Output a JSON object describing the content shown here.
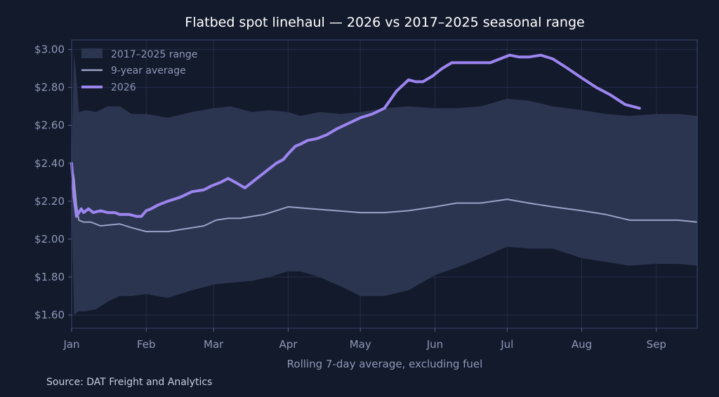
{
  "chart_data": {
    "type": "line",
    "title": "Flatbed spot linehaul — 2026 vs 2017–2025 seasonal range",
    "xlabel": "Rolling 7-day average, excluding fuel",
    "ylabel": "",
    "source": "Source: DAT Freight and Analytics",
    "x_ticks": [
      "Jan",
      "Feb",
      "Mar",
      "Apr",
      "May",
      "Jun",
      "Jul",
      "Aug",
      "Sep"
    ],
    "x_tick_days": [
      0,
      31,
      59,
      90,
      120,
      151,
      181,
      212,
      243
    ],
    "xlim": [
      0,
      260
    ],
    "y_ticks": [
      "$1.60",
      "$1.80",
      "$2.00",
      "$2.20",
      "$2.40",
      "$2.60",
      "$2.80",
      "$3.00"
    ],
    "y_tick_values": [
      1.6,
      1.8,
      2.0,
      2.2,
      2.4,
      2.6,
      2.8,
      3.0
    ],
    "ylim": [
      1.53,
      3.05
    ],
    "grid": true,
    "legend_position": "top-left",
    "series": [
      {
        "name": "2017–2025 range",
        "kind": "band",
        "color": "#2b3550",
        "x": [
          0,
          1,
          2,
          3,
          6,
          10,
          15,
          20,
          25,
          31,
          40,
          50,
          59,
          66,
          75,
          82,
          90,
          95,
          103,
          112,
          120,
          130,
          140,
          151,
          160,
          170,
          181,
          190,
          200,
          212,
          222,
          232,
          243,
          252,
          260
        ],
        "upper": [
          2.4,
          2.98,
          2.85,
          2.67,
          2.68,
          2.67,
          2.7,
          2.7,
          2.66,
          2.66,
          2.64,
          2.67,
          2.69,
          2.7,
          2.67,
          2.68,
          2.67,
          2.65,
          2.67,
          2.66,
          2.67,
          2.69,
          2.7,
          2.69,
          2.69,
          2.7,
          2.74,
          2.73,
          2.7,
          2.68,
          2.66,
          2.65,
          2.66,
          2.66,
          2.65
        ],
        "lower": [
          2.2,
          1.6,
          1.61,
          1.62,
          1.62,
          1.63,
          1.67,
          1.7,
          1.7,
          1.71,
          1.69,
          1.73,
          1.76,
          1.77,
          1.78,
          1.8,
          1.83,
          1.83,
          1.8,
          1.75,
          1.7,
          1.7,
          1.73,
          1.81,
          1.85,
          1.9,
          1.96,
          1.95,
          1.95,
          1.9,
          1.88,
          1.86,
          1.87,
          1.87,
          1.86
        ]
      },
      {
        "name": "9-year average",
        "kind": "line",
        "color": "#9aa3c4",
        "x": [
          0,
          1,
          2,
          3,
          5,
          8,
          12,
          20,
          25,
          31,
          40,
          50,
          55,
          60,
          65,
          70,
          80,
          90,
          100,
          110,
          120,
          130,
          140,
          151,
          160,
          170,
          181,
          190,
          200,
          212,
          222,
          232,
          243,
          252,
          260
        ],
        "values": [
          2.4,
          2.32,
          2.18,
          2.1,
          2.09,
          2.09,
          2.07,
          2.08,
          2.06,
          2.04,
          2.04,
          2.06,
          2.07,
          2.1,
          2.11,
          2.11,
          2.13,
          2.17,
          2.16,
          2.15,
          2.14,
          2.14,
          2.15,
          2.17,
          2.19,
          2.19,
          2.21,
          2.19,
          2.17,
          2.15,
          2.13,
          2.1,
          2.1,
          2.1,
          2.09
        ]
      },
      {
        "name": "2026",
        "kind": "line",
        "color": "#9d85f0",
        "x": [
          0,
          1,
          2,
          3,
          4,
          5,
          7,
          9,
          12,
          15,
          18,
          20,
          24,
          27,
          29,
          31,
          33,
          36,
          40,
          45,
          50,
          55,
          58,
          62,
          65,
          68,
          72,
          75,
          80,
          85,
          88,
          90,
          93,
          95,
          98,
          102,
          106,
          110,
          115,
          120,
          125,
          130,
          135,
          140,
          143,
          146,
          150,
          154,
          158,
          163,
          168,
          174,
          178,
          182,
          186,
          190,
          195,
          200,
          205,
          212,
          218,
          224,
          230,
          236
        ],
        "values": [
          2.4,
          2.22,
          2.12,
          2.14,
          2.16,
          2.14,
          2.16,
          2.14,
          2.15,
          2.14,
          2.14,
          2.13,
          2.13,
          2.12,
          2.12,
          2.15,
          2.16,
          2.18,
          2.2,
          2.22,
          2.25,
          2.26,
          2.28,
          2.3,
          2.32,
          2.3,
          2.27,
          2.3,
          2.35,
          2.4,
          2.42,
          2.45,
          2.49,
          2.5,
          2.52,
          2.53,
          2.55,
          2.58,
          2.61,
          2.64,
          2.66,
          2.69,
          2.78,
          2.84,
          2.83,
          2.83,
          2.86,
          2.9,
          2.93,
          2.93,
          2.93,
          2.93,
          2.95,
          2.97,
          2.96,
          2.96,
          2.97,
          2.95,
          2.91,
          2.85,
          2.8,
          2.76,
          2.71,
          2.69
        ]
      }
    ]
  }
}
